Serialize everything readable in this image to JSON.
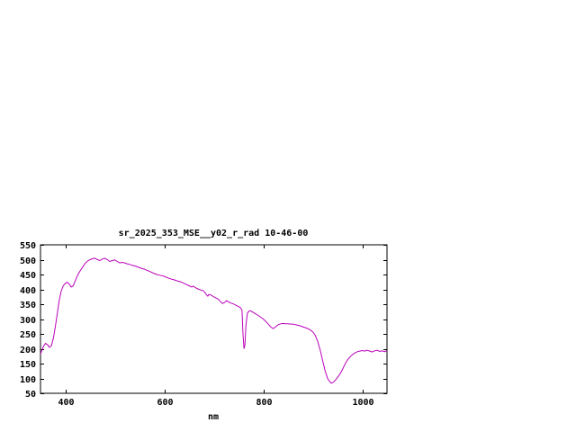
{
  "window": {
    "background": "#ffffff"
  },
  "chart_data": {
    "type": "line",
    "title": "sr_2025_353_MSE__y02_r_rad 10-46-00",
    "xlabel": "nm",
    "ylabel": "",
    "xlim": [
      350,
      1050
    ],
    "ylim": [
      50,
      550
    ],
    "xticks": [
      400,
      600,
      800,
      1000
    ],
    "yticks": [
      50,
      100,
      150,
      200,
      250,
      300,
      350,
      400,
      450,
      500,
      550
    ],
    "grid": false,
    "legend_position": "none",
    "line_color": "#bb00bb",
    "axis_color": "#000000",
    "series": [
      {
        "name": "sr_2025_353_MSE__y02_r_rad",
        "points": [
          [
            350,
            182
          ],
          [
            353,
            195
          ],
          [
            356,
            208
          ],
          [
            360,
            218
          ],
          [
            364,
            214
          ],
          [
            368,
            205
          ],
          [
            372,
            210
          ],
          [
            376,
            235
          ],
          [
            380,
            275
          ],
          [
            384,
            320
          ],
          [
            388,
            365
          ],
          [
            392,
            395
          ],
          [
            396,
            412
          ],
          [
            400,
            420
          ],
          [
            404,
            424
          ],
          [
            408,
            418
          ],
          [
            412,
            408
          ],
          [
            416,
            412
          ],
          [
            420,
            428
          ],
          [
            425,
            448
          ],
          [
            430,
            462
          ],
          [
            435,
            475
          ],
          [
            440,
            487
          ],
          [
            445,
            495
          ],
          [
            450,
            500
          ],
          [
            455,
            503
          ],
          [
            460,
            505
          ],
          [
            465,
            500
          ],
          [
            470,
            497
          ],
          [
            475,
            502
          ],
          [
            480,
            505
          ],
          [
            485,
            500
          ],
          [
            490,
            494
          ],
          [
            495,
            497
          ],
          [
            500,
            499
          ],
          [
            505,
            494
          ],
          [
            510,
            489
          ],
          [
            515,
            491
          ],
          [
            520,
            489
          ],
          [
            525,
            486
          ],
          [
            530,
            484
          ],
          [
            535,
            481
          ],
          [
            540,
            479
          ],
          [
            545,
            476
          ],
          [
            550,
            473
          ],
          [
            555,
            470
          ],
          [
            560,
            468
          ],
          [
            565,
            464
          ],
          [
            570,
            461
          ],
          [
            575,
            457
          ],
          [
            580,
            453
          ],
          [
            585,
            450
          ],
          [
            590,
            448
          ],
          [
            595,
            446
          ],
          [
            600,
            444
          ],
          [
            605,
            440
          ],
          [
            610,
            437
          ],
          [
            615,
            434
          ],
          [
            620,
            432
          ],
          [
            625,
            429
          ],
          [
            630,
            427
          ],
          [
            635,
            424
          ],
          [
            640,
            420
          ],
          [
            645,
            416
          ],
          [
            650,
            412
          ],
          [
            655,
            408
          ],
          [
            658,
            411
          ],
          [
            662,
            407
          ],
          [
            666,
            403
          ],
          [
            670,
            400
          ],
          [
            674,
            398
          ],
          [
            678,
            396
          ],
          [
            682,
            390
          ],
          [
            686,
            380
          ],
          [
            688,
            377
          ],
          [
            690,
            383
          ],
          [
            694,
            381
          ],
          [
            698,
            377
          ],
          [
            702,
            373
          ],
          [
            706,
            370
          ],
          [
            710,
            366
          ],
          [
            714,
            358
          ],
          [
            718,
            352
          ],
          [
            722,
            356
          ],
          [
            726,
            362
          ],
          [
            730,
            358
          ],
          [
            734,
            354
          ],
          [
            738,
            352
          ],
          [
            742,
            349
          ],
          [
            746,
            345
          ],
          [
            750,
            342
          ],
          [
            754,
            338
          ],
          [
            757,
            330
          ],
          [
            759,
            255
          ],
          [
            761,
            200
          ],
          [
            763,
            212
          ],
          [
            765,
            280
          ],
          [
            768,
            320
          ],
          [
            772,
            328
          ],
          [
            776,
            326
          ],
          [
            780,
            322
          ],
          [
            785,
            317
          ],
          [
            790,
            312
          ],
          [
            795,
            306
          ],
          [
            800,
            300
          ],
          [
            805,
            292
          ],
          [
            810,
            283
          ],
          [
            815,
            274
          ],
          [
            820,
            268
          ],
          [
            825,
            274
          ],
          [
            830,
            281
          ],
          [
            835,
            284
          ],
          [
            840,
            285
          ],
          [
            845,
            284
          ],
          [
            850,
            284
          ],
          [
            855,
            283
          ],
          [
            860,
            283
          ],
          [
            865,
            281
          ],
          [
            870,
            279
          ],
          [
            875,
            277
          ],
          [
            880,
            274
          ],
          [
            885,
            271
          ],
          [
            890,
            268
          ],
          [
            895,
            263
          ],
          [
            900,
            257
          ],
          [
            905,
            245
          ],
          [
            910,
            225
          ],
          [
            915,
            195
          ],
          [
            920,
            160
          ],
          [
            925,
            125
          ],
          [
            930,
            100
          ],
          [
            935,
            88
          ],
          [
            938,
            84
          ],
          [
            942,
            88
          ],
          [
            946,
            95
          ],
          [
            950,
            103
          ],
          [
            955,
            115
          ],
          [
            960,
            130
          ],
          [
            965,
            148
          ],
          [
            970,
            162
          ],
          [
            975,
            172
          ],
          [
            980,
            180
          ],
          [
            985,
            186
          ],
          [
            990,
            190
          ],
          [
            995,
            192
          ],
          [
            1000,
            194
          ],
          [
            1005,
            192
          ],
          [
            1010,
            195
          ],
          [
            1015,
            192
          ],
          [
            1020,
            189
          ],
          [
            1025,
            193
          ],
          [
            1030,
            195
          ],
          [
            1035,
            191
          ],
          [
            1040,
            193
          ],
          [
            1045,
            190
          ],
          [
            1050,
            194
          ]
        ]
      }
    ]
  }
}
